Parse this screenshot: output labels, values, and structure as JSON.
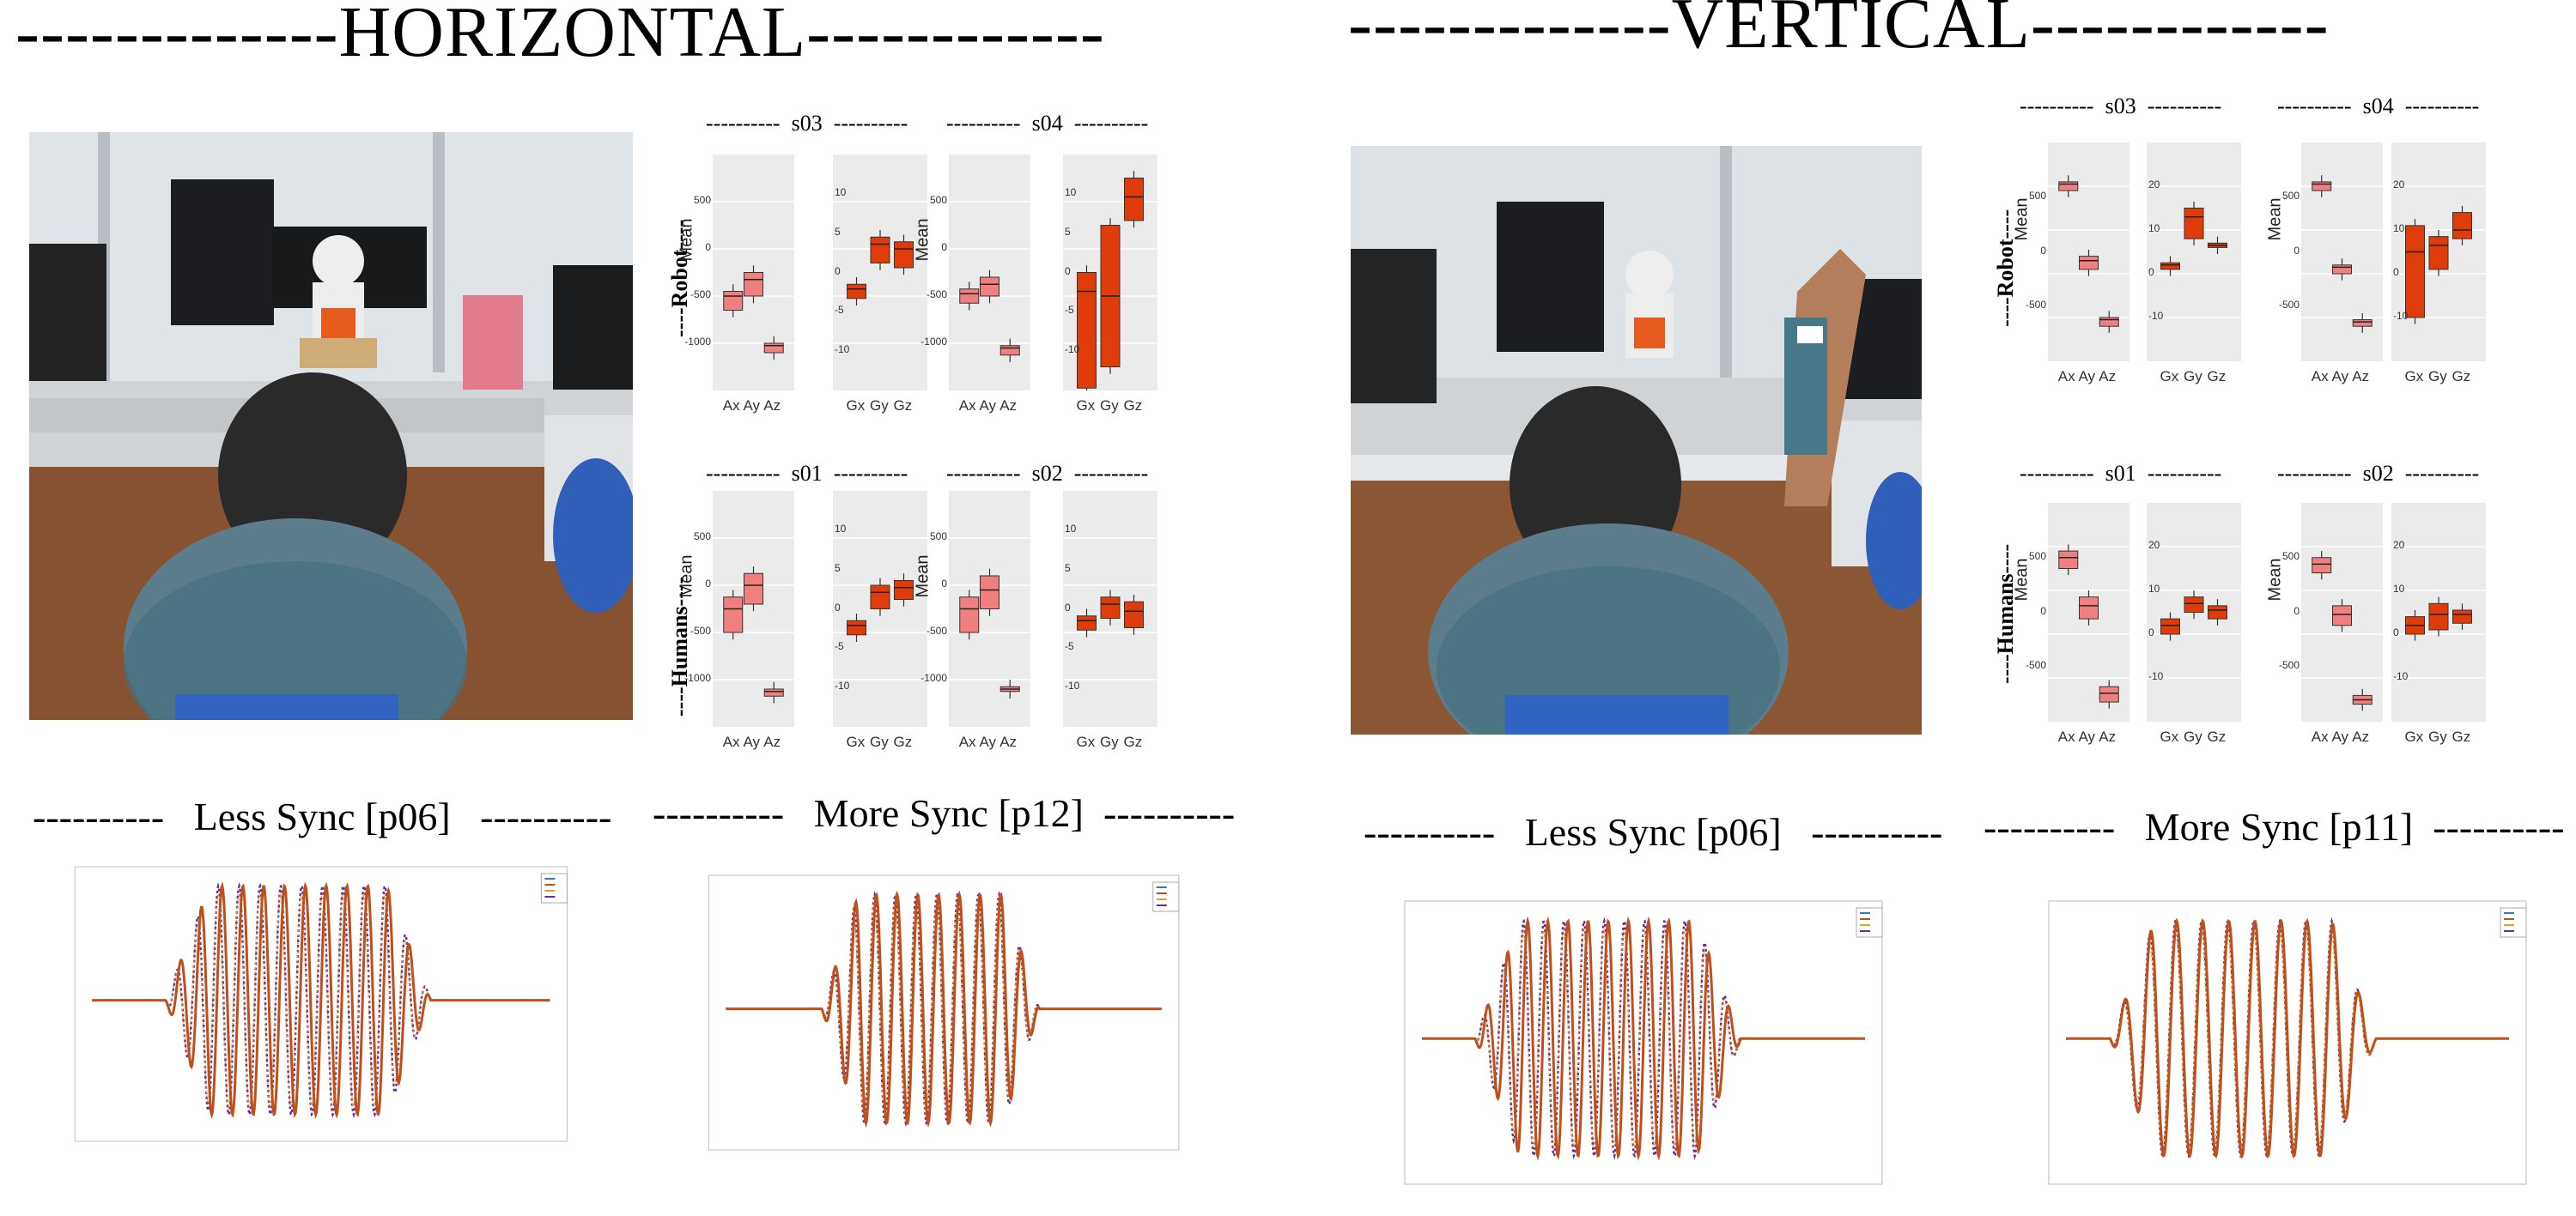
{
  "sections": {
    "horizontal": {
      "title": "-------------HORIZONTAL------------"
    },
    "vertical": {
      "title": "-------------VERTICAL------------"
    }
  },
  "rows": {
    "robot": "----Robot----",
    "humans": "----Humans----"
  },
  "dash": "----------",
  "boxplots": {
    "mean_label": "Mean",
    "acc_ticks": [
      "Ax",
      "Ay",
      "Az"
    ],
    "gyro_ticks": [
      "Gx",
      "Gy",
      "Gz"
    ],
    "h_s03": {
      "title": "s03",
      "y1": [
        "500",
        "0",
        "-500",
        "-1000"
      ],
      "y2": [
        "10",
        "5",
        "0",
        "-5",
        "-10"
      ]
    },
    "h_s04": {
      "title": "s04",
      "y1": [
        "500",
        "0",
        "-500",
        "-1000"
      ],
      "y2": [
        "10",
        "5",
        "0",
        "-5",
        "-10"
      ]
    },
    "h_s01": {
      "title": "s01",
      "y1": [
        "500",
        "0",
        "-500",
        "-1000"
      ],
      "y2": [
        "10",
        "5",
        "0",
        "-5",
        "-10"
      ]
    },
    "h_s02": {
      "title": "s02",
      "y1": [
        "500",
        "0",
        "-500",
        "-1000"
      ],
      "y2": [
        "10",
        "5",
        "0",
        "-5",
        "-10"
      ]
    },
    "v_s03": {
      "title": "s03",
      "y1": [
        "500",
        "0",
        "-500"
      ],
      "y2": [
        "20",
        "10",
        "0",
        "-10"
      ]
    },
    "v_s04": {
      "title": "s04",
      "y1": [
        "500",
        "0",
        "-500"
      ],
      "y2": [
        "20",
        "10",
        "0",
        "-10"
      ]
    },
    "v_s01": {
      "title": "s01",
      "y1": [
        "500",
        "0",
        "-500"
      ],
      "y2": [
        "20",
        "10",
        "0",
        "-10"
      ]
    },
    "v_s02": {
      "title": "s02",
      "y1": [
        "500",
        "0",
        "-500"
      ],
      "y2": [
        "20",
        "10",
        "0",
        "-10"
      ]
    }
  },
  "signal_titles": {
    "h_less": "Less Sync [p06]",
    "h_more": "More Sync [p12]",
    "v_less": "Less Sync [p06]",
    "v_more": "More Sync [p11]"
  },
  "colors": {
    "box_acc": "#f08080",
    "box_gyro": "#e03c0a",
    "panel_bg": "#ebebeb",
    "sig_robot": "#c0501a",
    "sig_human": "#6a2d9a",
    "sig_extra1": "#2a7fc0",
    "sig_extra2": "#e8a020"
  }
}
